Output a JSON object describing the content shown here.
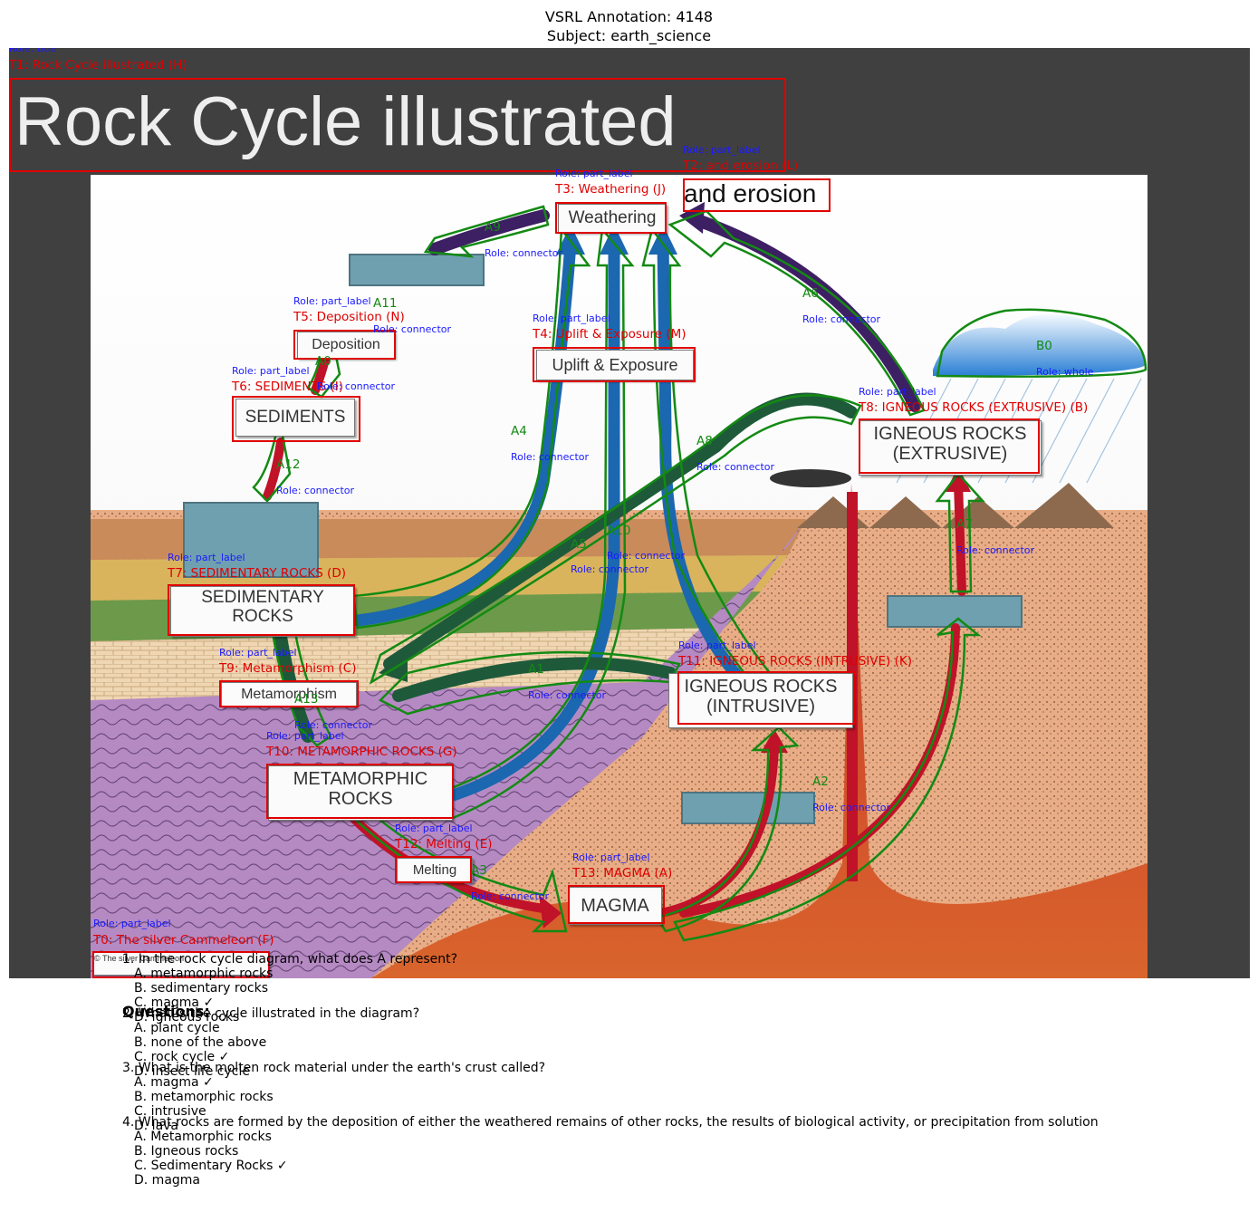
{
  "header": {
    "line1": "VSRL Annotation: 4148",
    "line2": "Subject: earth_science"
  },
  "diagram": {
    "title": "Rock Cycle illustrated",
    "box_texts": {
      "weathering": "Weathering",
      "erosion": "and erosion",
      "deposition": "Deposition",
      "uplift": "Uplift & Exposure",
      "sediments": "SEDIMENTS",
      "sedimentary_1": "SEDIMENTARY",
      "sedimentary_2": "ROCKS",
      "igneous_ext_1": "IGNEOUS ROCKS",
      "igneous_ext_2": "(EXTRUSIVE)",
      "metamorphism": "Metamorphism",
      "metamorphic_1": "METAMORPHIC",
      "metamorphic_2": "ROCKS",
      "igneous_int_1": "IGNEOUS ROCKS",
      "igneous_int_2": "(INTRUSIVE)",
      "melting": "Melting",
      "magma": "MAGMA",
      "credit": "© The silver Cammeleon"
    },
    "colors": {
      "annotation_text": "#e00000",
      "annotation_role": "#1a1aff",
      "annotation_arrow": "#138a13",
      "arrow_blue": "#1b67b0",
      "arrow_purple": "#3d1f63",
      "arrow_green": "#1e5a3a",
      "arrow_red": "#c01228"
    }
  },
  "annotations": {
    "title": {
      "role": "Role: title",
      "name": "T1: Rock Cycle illustrated (H)"
    },
    "t2": {
      "role": "Role: part_label",
      "name": "T2: and erosion (L)"
    },
    "t3": {
      "role": "Role: part_label",
      "name": "T3: Weathering (J)"
    },
    "t4": {
      "role": "Role: part_label",
      "name": "T4: Uplift & Exposure (M)"
    },
    "t5": {
      "role": "Role: part_label",
      "name": "T5: Deposition (N)"
    },
    "t6": {
      "role": "Role: part_label",
      "name": "T6: SEDIMENTS (I)"
    },
    "t7": {
      "role": "Role: part_label",
      "name": "T7: SEDIMENTARY ROCKS (D)"
    },
    "t8": {
      "role": "Role: part_label",
      "name": "T8: IGNEOUS ROCKS (EXTRUSIVE) (B)"
    },
    "t9": {
      "role": "Role: part_label",
      "name": "T9: Metamorphism (C)"
    },
    "t10": {
      "role": "Role: part_label",
      "name": "T10: METAMORPHIC ROCKS (G)"
    },
    "t11": {
      "role": "Role: part_label",
      "name": "T11: IGNEOUS ROCKS (INTRUSIVE) (K)"
    },
    "t12": {
      "role": "Role: part_label",
      "name": "T12: Melting (E)"
    },
    "t13": {
      "role": "Role: part_label",
      "name": "T13: MAGMA (A)"
    },
    "t0": {
      "role": "Role: part_label",
      "name": "T0: The silver Cammeleon (F)"
    },
    "b0": {
      "role": "Role: whole",
      "name": "B0"
    },
    "connector_role": "Role: connector",
    "arrow_names": {
      "a0": "A0",
      "a1": "A1",
      "a2": "A2",
      "a3": "A3",
      "a4": "A4",
      "a5": "A5",
      "a6": "A6",
      "a7": "A7",
      "a8": "A8",
      "a9": "A9",
      "a10": "A10",
      "a11": "A11",
      "a12": "A12",
      "a13": "A13"
    }
  },
  "questions": {
    "heading": "Questions:",
    "items": [
      {
        "stem": "1. In the rock cycle diagram, what does A represent?",
        "options": [
          "A. metamorphic rocks",
          "B. sedimentary rocks",
          "C. magma ✓",
          "D. igneous rocks"
        ]
      },
      {
        "stem": "2. What is the cycle illustrated in the diagram?",
        "options": [
          "A. plant cycle",
          "B. none of the above",
          "C. rock cycle ✓",
          "D. insect life cycle"
        ]
      },
      {
        "stem": "3. What is the molten rock material under the earth's crust called?",
        "options": [
          "A. magma ✓",
          "B. metamorphic rocks",
          "C. intrusive",
          "D. lava"
        ]
      },
      {
        "stem": "4. What rocks are formed by the deposition of either the weathered remains of other rocks, the results of biological activity, or precipitation from solution",
        "options": [
          "A. Metamorphic rocks",
          "B. Igneous rocks",
          "C. Sedimentary Rocks ✓",
          "D. magma"
        ]
      }
    ]
  }
}
